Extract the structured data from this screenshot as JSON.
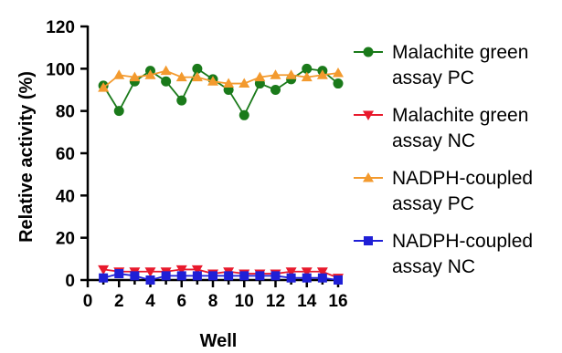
{
  "chart_data": {
    "type": "scatter",
    "xlabel": "Well",
    "ylabel": "Relative activity (%)",
    "xlim": [
      0,
      16
    ],
    "ylim": [
      0,
      120
    ],
    "x_ticks": [
      "0",
      "2",
      "4",
      "6",
      "8",
      "10",
      "12",
      "14",
      "16"
    ],
    "y_ticks": [
      "0",
      "20",
      "40",
      "60",
      "80",
      "100",
      "120"
    ],
    "x": [
      1,
      2,
      3,
      4,
      5,
      6,
      7,
      8,
      9,
      10,
      11,
      12,
      13,
      14,
      15,
      16
    ],
    "series": [
      {
        "name": "Malachite green assay PC",
        "legend_lines": [
          "Malachite green",
          "assay PC"
        ],
        "color": "#1a7a1a",
        "marker": "circle",
        "values": [
          92,
          80,
          94,
          99,
          94,
          85,
          100,
          95,
          90,
          78,
          93,
          90,
          95,
          100,
          99,
          93
        ]
      },
      {
        "name": "Malachite green assay NC",
        "legend_lines": [
          "Malachite green",
          "assay NC"
        ],
        "color": "#e8192c",
        "marker": "triangle-down",
        "values": [
          5,
          4,
          4,
          4,
          4,
          5,
          5,
          3,
          4,
          3,
          3,
          3,
          4,
          4,
          4,
          1
        ]
      },
      {
        "name": "NADPH-coupled assay PC",
        "legend_lines": [
          "NADPH-coupled",
          "assay PC"
        ],
        "color": "#f39a2e",
        "marker": "triangle-up",
        "values": [
          91,
          97,
          96,
          97,
          99,
          96,
          96,
          94,
          93,
          93,
          96,
          97,
          97,
          96,
          97,
          98
        ]
      },
      {
        "name": "NADPH-coupled assay NC",
        "legend_lines": [
          "NADPH-coupled",
          "assay NC"
        ],
        "color": "#1f1fd6",
        "marker": "square",
        "values": [
          1,
          3,
          2,
          0,
          2,
          2,
          2,
          2,
          2,
          2,
          2,
          2,
          1,
          1,
          1,
          0
        ]
      }
    ],
    "legend_position": "right",
    "grid": false
  }
}
